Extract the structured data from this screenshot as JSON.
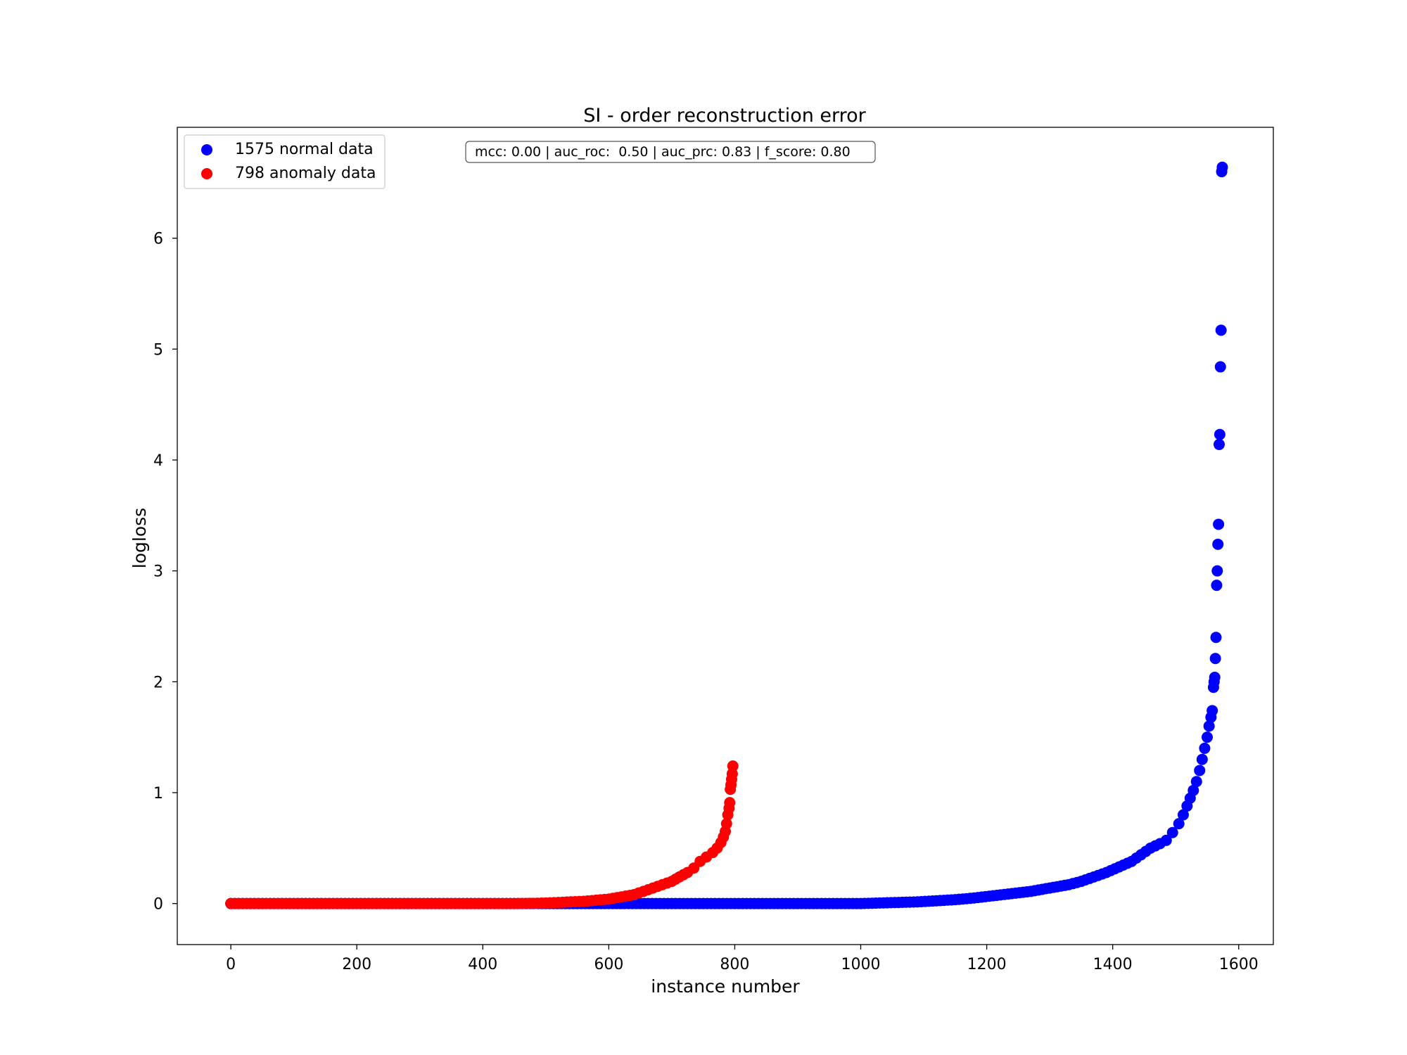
{
  "chart_data": {
    "type": "scatter",
    "title": "SI - order reconstruction error",
    "xlabel": "instance number",
    "ylabel": "logloss",
    "xlim": [
      -85,
      1655
    ],
    "ylim": [
      -0.37,
      7.0
    ],
    "xticks": [
      0,
      200,
      400,
      600,
      800,
      1000,
      1200,
      1400,
      1600
    ],
    "yticks": [
      0,
      1,
      2,
      3,
      4,
      5,
      6
    ],
    "grid": false,
    "legend_position": "upper-left",
    "metrics_text": "mcc: 0.00 | auc_roc:  0.50 | auc_prc: 0.83 | f_score: 0.80",
    "series": [
      {
        "name": "1575 normal data",
        "color": "#0000ff",
        "points": [
          [
            0,
            0.0
          ],
          [
            100,
            0.0
          ],
          [
            200,
            0.0
          ],
          [
            300,
            0.0
          ],
          [
            400,
            0.0
          ],
          [
            500,
            0.0
          ],
          [
            600,
            0.0
          ],
          [
            700,
            0.0
          ],
          [
            800,
            0.0
          ],
          [
            900,
            0.0
          ],
          [
            1000,
            0.0
          ],
          [
            1030,
            0.005
          ],
          [
            1060,
            0.01
          ],
          [
            1090,
            0.015
          ],
          [
            1120,
            0.025
          ],
          [
            1150,
            0.035
          ],
          [
            1180,
            0.05
          ],
          [
            1210,
            0.07
          ],
          [
            1240,
            0.09
          ],
          [
            1270,
            0.11
          ],
          [
            1300,
            0.14
          ],
          [
            1330,
            0.17
          ],
          [
            1350,
            0.2
          ],
          [
            1370,
            0.24
          ],
          [
            1390,
            0.28
          ],
          [
            1410,
            0.33
          ],
          [
            1430,
            0.38
          ],
          [
            1445,
            0.44
          ],
          [
            1460,
            0.5
          ],
          [
            1475,
            0.54
          ],
          [
            1485,
            0.57
          ],
          [
            1495,
            0.64
          ],
          [
            1505,
            0.72
          ],
          [
            1512,
            0.8
          ],
          [
            1518,
            0.88
          ],
          [
            1523,
            0.95
          ],
          [
            1528,
            1.02
          ],
          [
            1533,
            1.1
          ],
          [
            1538,
            1.2
          ],
          [
            1542,
            1.3
          ],
          [
            1546,
            1.4
          ],
          [
            1550,
            1.5
          ],
          [
            1553,
            1.6
          ],
          [
            1556,
            1.68
          ],
          [
            1558,
            1.74
          ],
          [
            1560,
            1.95
          ],
          [
            1561,
            2.0
          ],
          [
            1562,
            2.04
          ],
          [
            1563,
            2.21
          ],
          [
            1564,
            2.4
          ],
          [
            1565,
            2.87
          ],
          [
            1566,
            3.0
          ],
          [
            1567,
            3.24
          ],
          [
            1568,
            3.42
          ],
          [
            1569,
            4.14
          ],
          [
            1570,
            4.23
          ],
          [
            1571,
            4.84
          ],
          [
            1572,
            5.17
          ],
          [
            1573,
            6.6
          ],
          [
            1574,
            6.64
          ]
        ]
      },
      {
        "name": "798 anomaly data",
        "color": "#ff0000",
        "points": [
          [
            0,
            0.0
          ],
          [
            50,
            0.0
          ],
          [
            100,
            0.0
          ],
          [
            150,
            0.0
          ],
          [
            200,
            0.0
          ],
          [
            250,
            0.0
          ],
          [
            300,
            0.0
          ],
          [
            350,
            0.0
          ],
          [
            400,
            0.0
          ],
          [
            450,
            0.0
          ],
          [
            480,
            0.002
          ],
          [
            500,
            0.005
          ],
          [
            520,
            0.01
          ],
          [
            540,
            0.015
          ],
          [
            560,
            0.02
          ],
          [
            580,
            0.03
          ],
          [
            600,
            0.04
          ],
          [
            620,
            0.06
          ],
          [
            640,
            0.08
          ],
          [
            655,
            0.11
          ],
          [
            670,
            0.14
          ],
          [
            685,
            0.17
          ],
          [
            700,
            0.2
          ],
          [
            712,
            0.24
          ],
          [
            725,
            0.28
          ],
          [
            735,
            0.32
          ],
          [
            745,
            0.38
          ],
          [
            755,
            0.42
          ],
          [
            765,
            0.46
          ],
          [
            772,
            0.5
          ],
          [
            778,
            0.55
          ],
          [
            782,
            0.6
          ],
          [
            785,
            0.65
          ],
          [
            787,
            0.72
          ],
          [
            789,
            0.8
          ],
          [
            791,
            0.86
          ],
          [
            792,
            0.91
          ],
          [
            793,
            1.03
          ],
          [
            794,
            1.07
          ],
          [
            795,
            1.12
          ],
          [
            796,
            1.17
          ],
          [
            797,
            1.24
          ]
        ]
      }
    ]
  }
}
